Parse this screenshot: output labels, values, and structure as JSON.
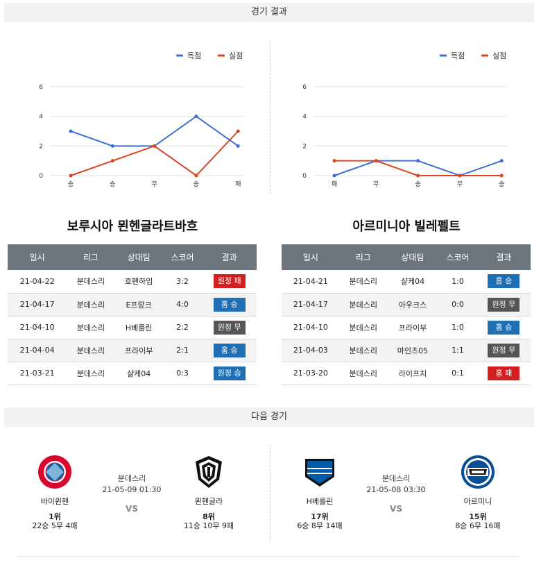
{
  "sections": {
    "results_title": "경기 결과",
    "next_title": "다음 경기"
  },
  "legend": {
    "scored": "득점",
    "conceded": "실점"
  },
  "colors": {
    "scored": "#3c6fd6",
    "conceded": "#d9441e",
    "win": "#1f6fb5",
    "lose": "#d31f1f",
    "draw": "#555555"
  },
  "chart_data": [
    {
      "type": "line",
      "categories": [
        "승",
        "승",
        "무",
        "승",
        "패"
      ],
      "series": [
        {
          "name": "득점",
          "values": [
            3,
            2,
            2,
            4,
            2
          ]
        },
        {
          "name": "실점",
          "values": [
            0,
            1,
            2,
            0,
            3
          ]
        }
      ],
      "ylim": [
        0,
        6
      ],
      "yticks": [
        0,
        2,
        4,
        6
      ],
      "legend": "top-right",
      "grid": true
    },
    {
      "type": "line",
      "categories": [
        "패",
        "무",
        "승",
        "무",
        "승"
      ],
      "series": [
        {
          "name": "득점",
          "values": [
            0,
            1,
            1,
            0,
            1
          ]
        },
        {
          "name": "실점",
          "values": [
            1,
            1,
            0,
            0,
            0
          ]
        }
      ],
      "ylim": [
        0,
        6
      ],
      "yticks": [
        0,
        2,
        4,
        6
      ],
      "legend": "top-right",
      "grid": true
    }
  ],
  "teams": {
    "left": {
      "title": "보루시아 묀헨글라트바흐",
      "headers": [
        "일시",
        "리그",
        "상대팀",
        "스코어",
        "결과"
      ],
      "rows": [
        {
          "date": "21-04-22",
          "league": "분데스리",
          "opponent": "호펜하임",
          "score": "3:2",
          "result": "원정 패",
          "kind": "lose"
        },
        {
          "date": "21-04-17",
          "league": "분데스리",
          "opponent": "E프랑크",
          "score": "4:0",
          "result": "홈 승",
          "kind": "win"
        },
        {
          "date": "21-04-10",
          "league": "분데스리",
          "opponent": "H베를린",
          "score": "2:2",
          "result": "원정 무",
          "kind": "draw"
        },
        {
          "date": "21-04-04",
          "league": "분데스리",
          "opponent": "프라이부",
          "score": "2:1",
          "result": "홈 승",
          "kind": "win"
        },
        {
          "date": "21-03-21",
          "league": "분데스리",
          "opponent": "샬케04",
          "score": "0:3",
          "result": "원정 승",
          "kind": "win"
        }
      ]
    },
    "right": {
      "title": "아르미니아 빌레펠트",
      "headers": [
        "일시",
        "리그",
        "상대팀",
        "스코어",
        "결과"
      ],
      "rows": [
        {
          "date": "21-04-21",
          "league": "분데스리",
          "opponent": "샬케04",
          "score": "1:0",
          "result": "홈 승",
          "kind": "win"
        },
        {
          "date": "21-04-17",
          "league": "분데스리",
          "opponent": "아우크스",
          "score": "0:0",
          "result": "원정 무",
          "kind": "draw"
        },
        {
          "date": "21-04-10",
          "league": "분데스리",
          "opponent": "프라이부",
          "score": "1:0",
          "result": "홈 승",
          "kind": "win"
        },
        {
          "date": "21-04-03",
          "league": "분데스리",
          "opponent": "마인츠05",
          "score": "1:1",
          "result": "원정 무",
          "kind": "draw"
        },
        {
          "date": "21-03-20",
          "league": "분데스리",
          "opponent": "라이프치",
          "score": "0:1",
          "result": "홈 패",
          "kind": "lose"
        }
      ]
    }
  },
  "next_matches": [
    {
      "league": "분데스리",
      "time": "21-05-09 01:30",
      "vs": "VS",
      "home": {
        "name": "바이뮌헨",
        "rank": "1위",
        "record": "22승 5무 4패",
        "logo_icon": "bayern-logo-icon"
      },
      "away": {
        "name": "묀헨글라",
        "rank": "8위",
        "record": "11승 10무 9패",
        "logo_icon": "gladbach-logo-icon"
      }
    },
    {
      "league": "분데스리",
      "time": "21-05-08 03:30",
      "vs": "VS",
      "home": {
        "name": "H베를린",
        "rank": "17위",
        "record": "6승 8무 14패",
        "logo_icon": "hertha-logo-icon"
      },
      "away": {
        "name": "아르미니",
        "rank": "15위",
        "record": "8승 6무 16패",
        "logo_icon": "arminia-logo-icon"
      }
    }
  ]
}
